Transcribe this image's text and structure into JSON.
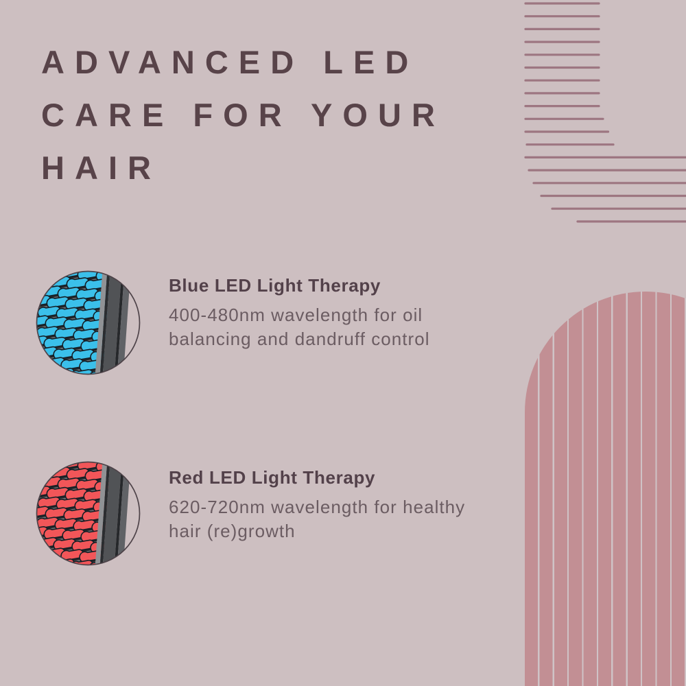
{
  "title": {
    "lines": [
      "ADVANCED LED",
      "CARE FOR YOUR",
      "HAIR"
    ]
  },
  "sections": [
    {
      "id": "blue",
      "heading": "Blue LED Light Therapy",
      "description": "400-480nm wavelength for oil\nbalancing and dandruff control",
      "icon": "blue-led-brush-photo",
      "bristle_color": "#3bc0ea"
    },
    {
      "id": "red",
      "heading": "Red LED Light Therapy",
      "description": "620-720nm wavelength for healthy\nhair (re)growth",
      "icon": "red-led-brush-photo",
      "bristle_color": "#f25659"
    }
  ],
  "colors": {
    "background": "#cdbfc1",
    "title_text": "#584349",
    "heading_text": "#53414a",
    "body_text": "#6b5c62",
    "deco_lines": "#9d7681",
    "arch_fill": "#c28f94",
    "arch_stripe_gap": "#cfc3c6",
    "brush_body_gray": "#6b6d70",
    "circle_ring": "#4e4349"
  }
}
